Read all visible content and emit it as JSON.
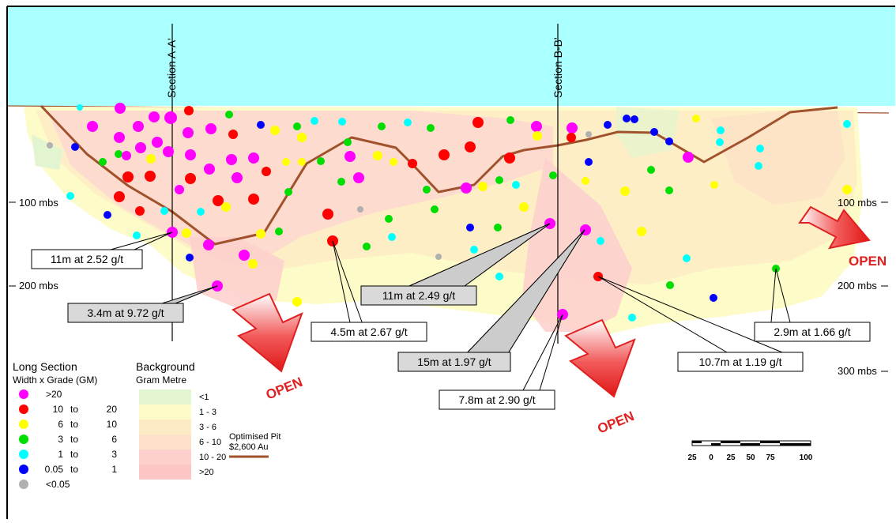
{
  "sections": [
    {
      "label": "Section A-A'"
    },
    {
      "label": "Section B-B'"
    }
  ],
  "depth_labels": {
    "left": [
      "100 mbs",
      "200 mbs"
    ],
    "right": [
      "100 mbs",
      "200 mbs",
      "300 mbs"
    ]
  },
  "callouts": [
    {
      "text": "11m at 2.52 g/t",
      "shaded": false
    },
    {
      "text": "3.4m at 9.72 g/t",
      "shaded": true
    },
    {
      "text": "4.5m at 2.67 g/t",
      "shaded": false
    },
    {
      "text": "11m at 2.49 g/t",
      "shaded": true
    },
    {
      "text": "15m at 1.97 g/t",
      "shaded": true
    },
    {
      "text": "7.8m at 2.90 g/t",
      "shaded": false
    },
    {
      "text": "10.7m at 1.19 g/t",
      "shaded": false
    },
    {
      "text": "2.9m at 1.66 g/t",
      "shaded": false
    }
  ],
  "open_labels": [
    "OPEN",
    "OPEN",
    "OPEN"
  ],
  "legend": {
    "title": "Long Section",
    "subtitle": "Width x Grade (GM)",
    "items": [
      {
        "lo": ">20",
        "to": "",
        "hi": "",
        "color": "#ff00ff"
      },
      {
        "lo": "10",
        "to": "to",
        "hi": "20",
        "color": "#ff0000"
      },
      {
        "lo": "6",
        "to": "to",
        "hi": "10",
        "color": "#ffff00"
      },
      {
        "lo": "3",
        "to": "to",
        "hi": "6",
        "color": "#00dd00"
      },
      {
        "lo": "1",
        "to": "to",
        "hi": "3",
        "color": "#00ffff"
      },
      {
        "lo": "0.05",
        "to": "to",
        "hi": "1",
        "color": "#0000ff"
      },
      {
        "lo": "<0.05",
        "to": "",
        "hi": "",
        "color": "#b0b0b0"
      }
    ]
  },
  "background_legend": {
    "title": "Background",
    "subtitle": "Gram Metre",
    "items": [
      {
        "label": "<1",
        "color": "#e3f5d0"
      },
      {
        "label": "1 - 3",
        "color": "#fdfbc8"
      },
      {
        "label": "3 - 6",
        "color": "#fdebc5"
      },
      {
        "label": "6 - 10",
        "color": "#fde0c8"
      },
      {
        "label": "10 - 20",
        "color": "#fdd0cd"
      },
      {
        "label": ">20",
        "color": "#fdc6c6"
      }
    ]
  },
  "pit_legend": {
    "line1": "Optimised Pit",
    "line2": "$2,600 Au",
    "color": "#a0522d"
  },
  "scale_bar": {
    "labels": [
      "25",
      "0",
      "25",
      "50",
      "75",
      "100"
    ]
  },
  "colors": {
    "sky": "#aaffff",
    "terrain_line": "#a0522d",
    "open_arrow": "#e02020"
  }
}
